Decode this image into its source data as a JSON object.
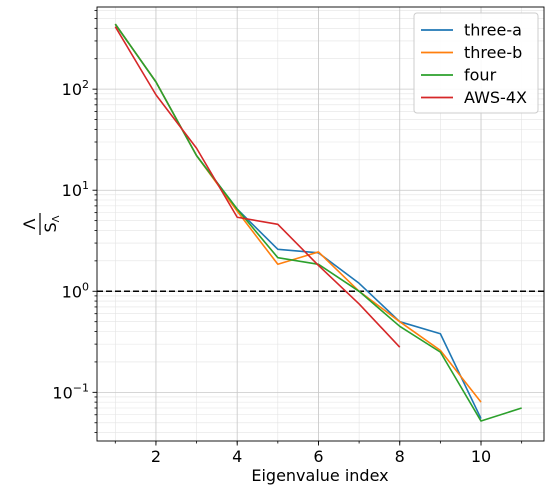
{
  "chart_data": {
    "type": "line",
    "xlabel": "Eigenvalue index",
    "ylabel_numerator": "Λ",
    "ylabel_denominator": "S",
    "ylabel_denominator_sub": "Λ",
    "yscale": "log",
    "xlim": [
      0.55,
      11.55
    ],
    "ylim": [
      0.033,
      650
    ],
    "x_ticks": [
      {
        "value": 2,
        "label": "2"
      },
      {
        "value": 4,
        "label": "4"
      },
      {
        "value": 6,
        "label": "6"
      },
      {
        "value": 8,
        "label": "8"
      },
      {
        "value": 10,
        "label": "10"
      }
    ],
    "y_ticks": [
      {
        "value": 0.1,
        "base": "10",
        "exp": "−1"
      },
      {
        "value": 1,
        "base": "10",
        "exp": "0"
      },
      {
        "value": 10,
        "base": "10",
        "exp": "1"
      },
      {
        "value": 100,
        "base": "10",
        "exp": "2"
      }
    ],
    "grid": "major and minor",
    "reference_line": {
      "y": 1,
      "style": "dashed",
      "color": "#000000"
    },
    "legend_position": "top-right",
    "series": [
      {
        "name": "three-a",
        "color": "#1f77b4",
        "x": [
          1,
          2,
          3,
          4,
          5,
          6,
          7,
          8,
          9,
          10
        ],
        "y": [
          440,
          118,
          22,
          6.5,
          2.6,
          2.4,
          1.2,
          0.5,
          0.38,
          0.055
        ]
      },
      {
        "name": "three-b",
        "color": "#ff7f0e",
        "x": [
          1,
          2,
          3,
          4,
          5,
          6,
          7,
          8,
          9,
          10
        ],
        "y": [
          440,
          118,
          22,
          6.2,
          1.85,
          2.45,
          1.0,
          0.5,
          0.26,
          0.08
        ]
      },
      {
        "name": "four",
        "color": "#2ca02c",
        "x": [
          1,
          2,
          3,
          4,
          5,
          6,
          7,
          8,
          9,
          10,
          11
        ],
        "y": [
          440,
          118,
          22,
          6.5,
          2.15,
          1.85,
          1.0,
          0.45,
          0.25,
          0.052,
          0.07
        ]
      },
      {
        "name": "AWS-4X",
        "color": "#d62728",
        "x": [
          1,
          2,
          3,
          4,
          5,
          6,
          7,
          8
        ],
        "y": [
          415,
          88,
          26,
          5.4,
          4.6,
          1.8,
          0.75,
          0.28
        ]
      }
    ]
  }
}
